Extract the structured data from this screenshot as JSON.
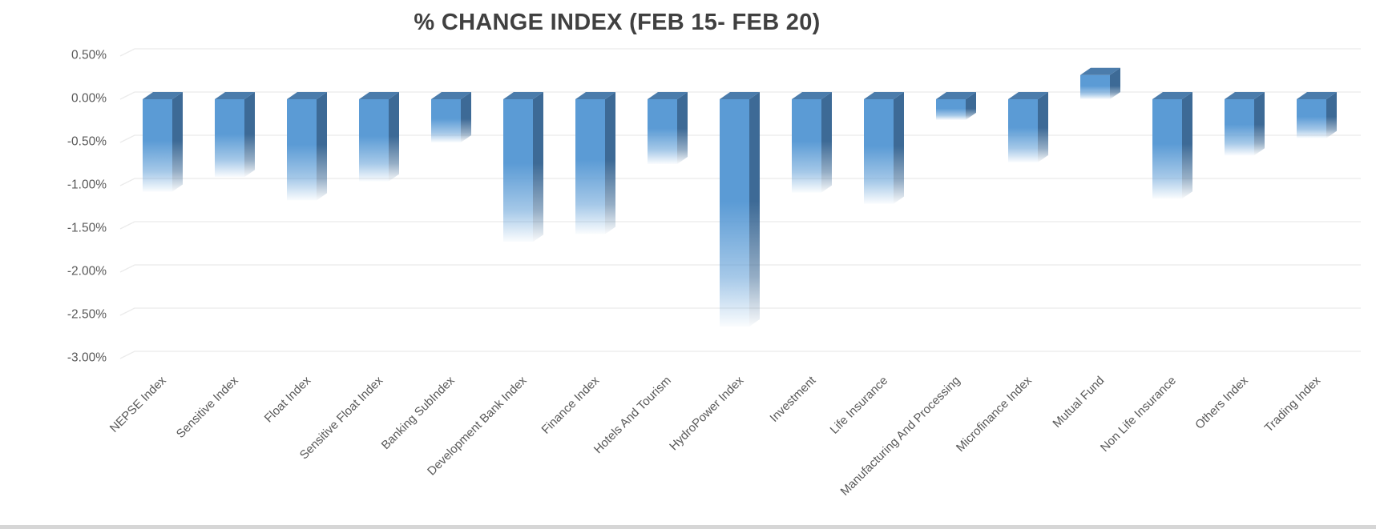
{
  "chart_data": {
    "type": "bar",
    "title": "% CHANGE INDEX (FEB 15- FEB 20)",
    "categories": [
      "NEPSE Index",
      "Sensitive Index",
      "Float Index",
      "Sensitive Float Index",
      "Banking SubIndex",
      "Development Bank Index",
      "Finance Index",
      "Hotels And Tourism",
      "HydroPower Index",
      "Investment",
      "Life Insurance",
      "Manufacturing And Processing",
      "Microfinance Index",
      "Mutual Fund",
      "Non Life Insurance",
      "Others Index",
      "Trading Index"
    ],
    "values": [
      -1.07,
      -0.9,
      -1.17,
      -0.95,
      -0.5,
      -1.65,
      -1.56,
      -0.75,
      -2.63,
      -1.08,
      -1.21,
      -0.24,
      -0.73,
      0.28,
      -1.15,
      -0.65,
      -0.45
    ],
    "unit": "%",
    "xlabel": "",
    "ylabel": "",
    "ylim": [
      -3.0,
      0.5
    ],
    "yticks": [
      0.5,
      0,
      -0.5,
      -1,
      -1.5,
      -2,
      -2.5,
      -3
    ],
    "ytick_labels": [
      "0.50%",
      "0.00%",
      "-0.50%",
      "-1.00%",
      "-1.50%",
      "-2.00%",
      "-2.50%",
      "-3.00%"
    ],
    "grid": true,
    "legend": "none",
    "style": "3d-column-gradient-fade",
    "colors": {
      "bar_front": "#5B9BD5",
      "bar_side": "#3D6A96",
      "bar_top": "#4B7CAB",
      "gridline": "#EBEBEB",
      "axis_label": "#595959",
      "title": "#404040",
      "bottom_strip": "#D6D6D6"
    }
  }
}
